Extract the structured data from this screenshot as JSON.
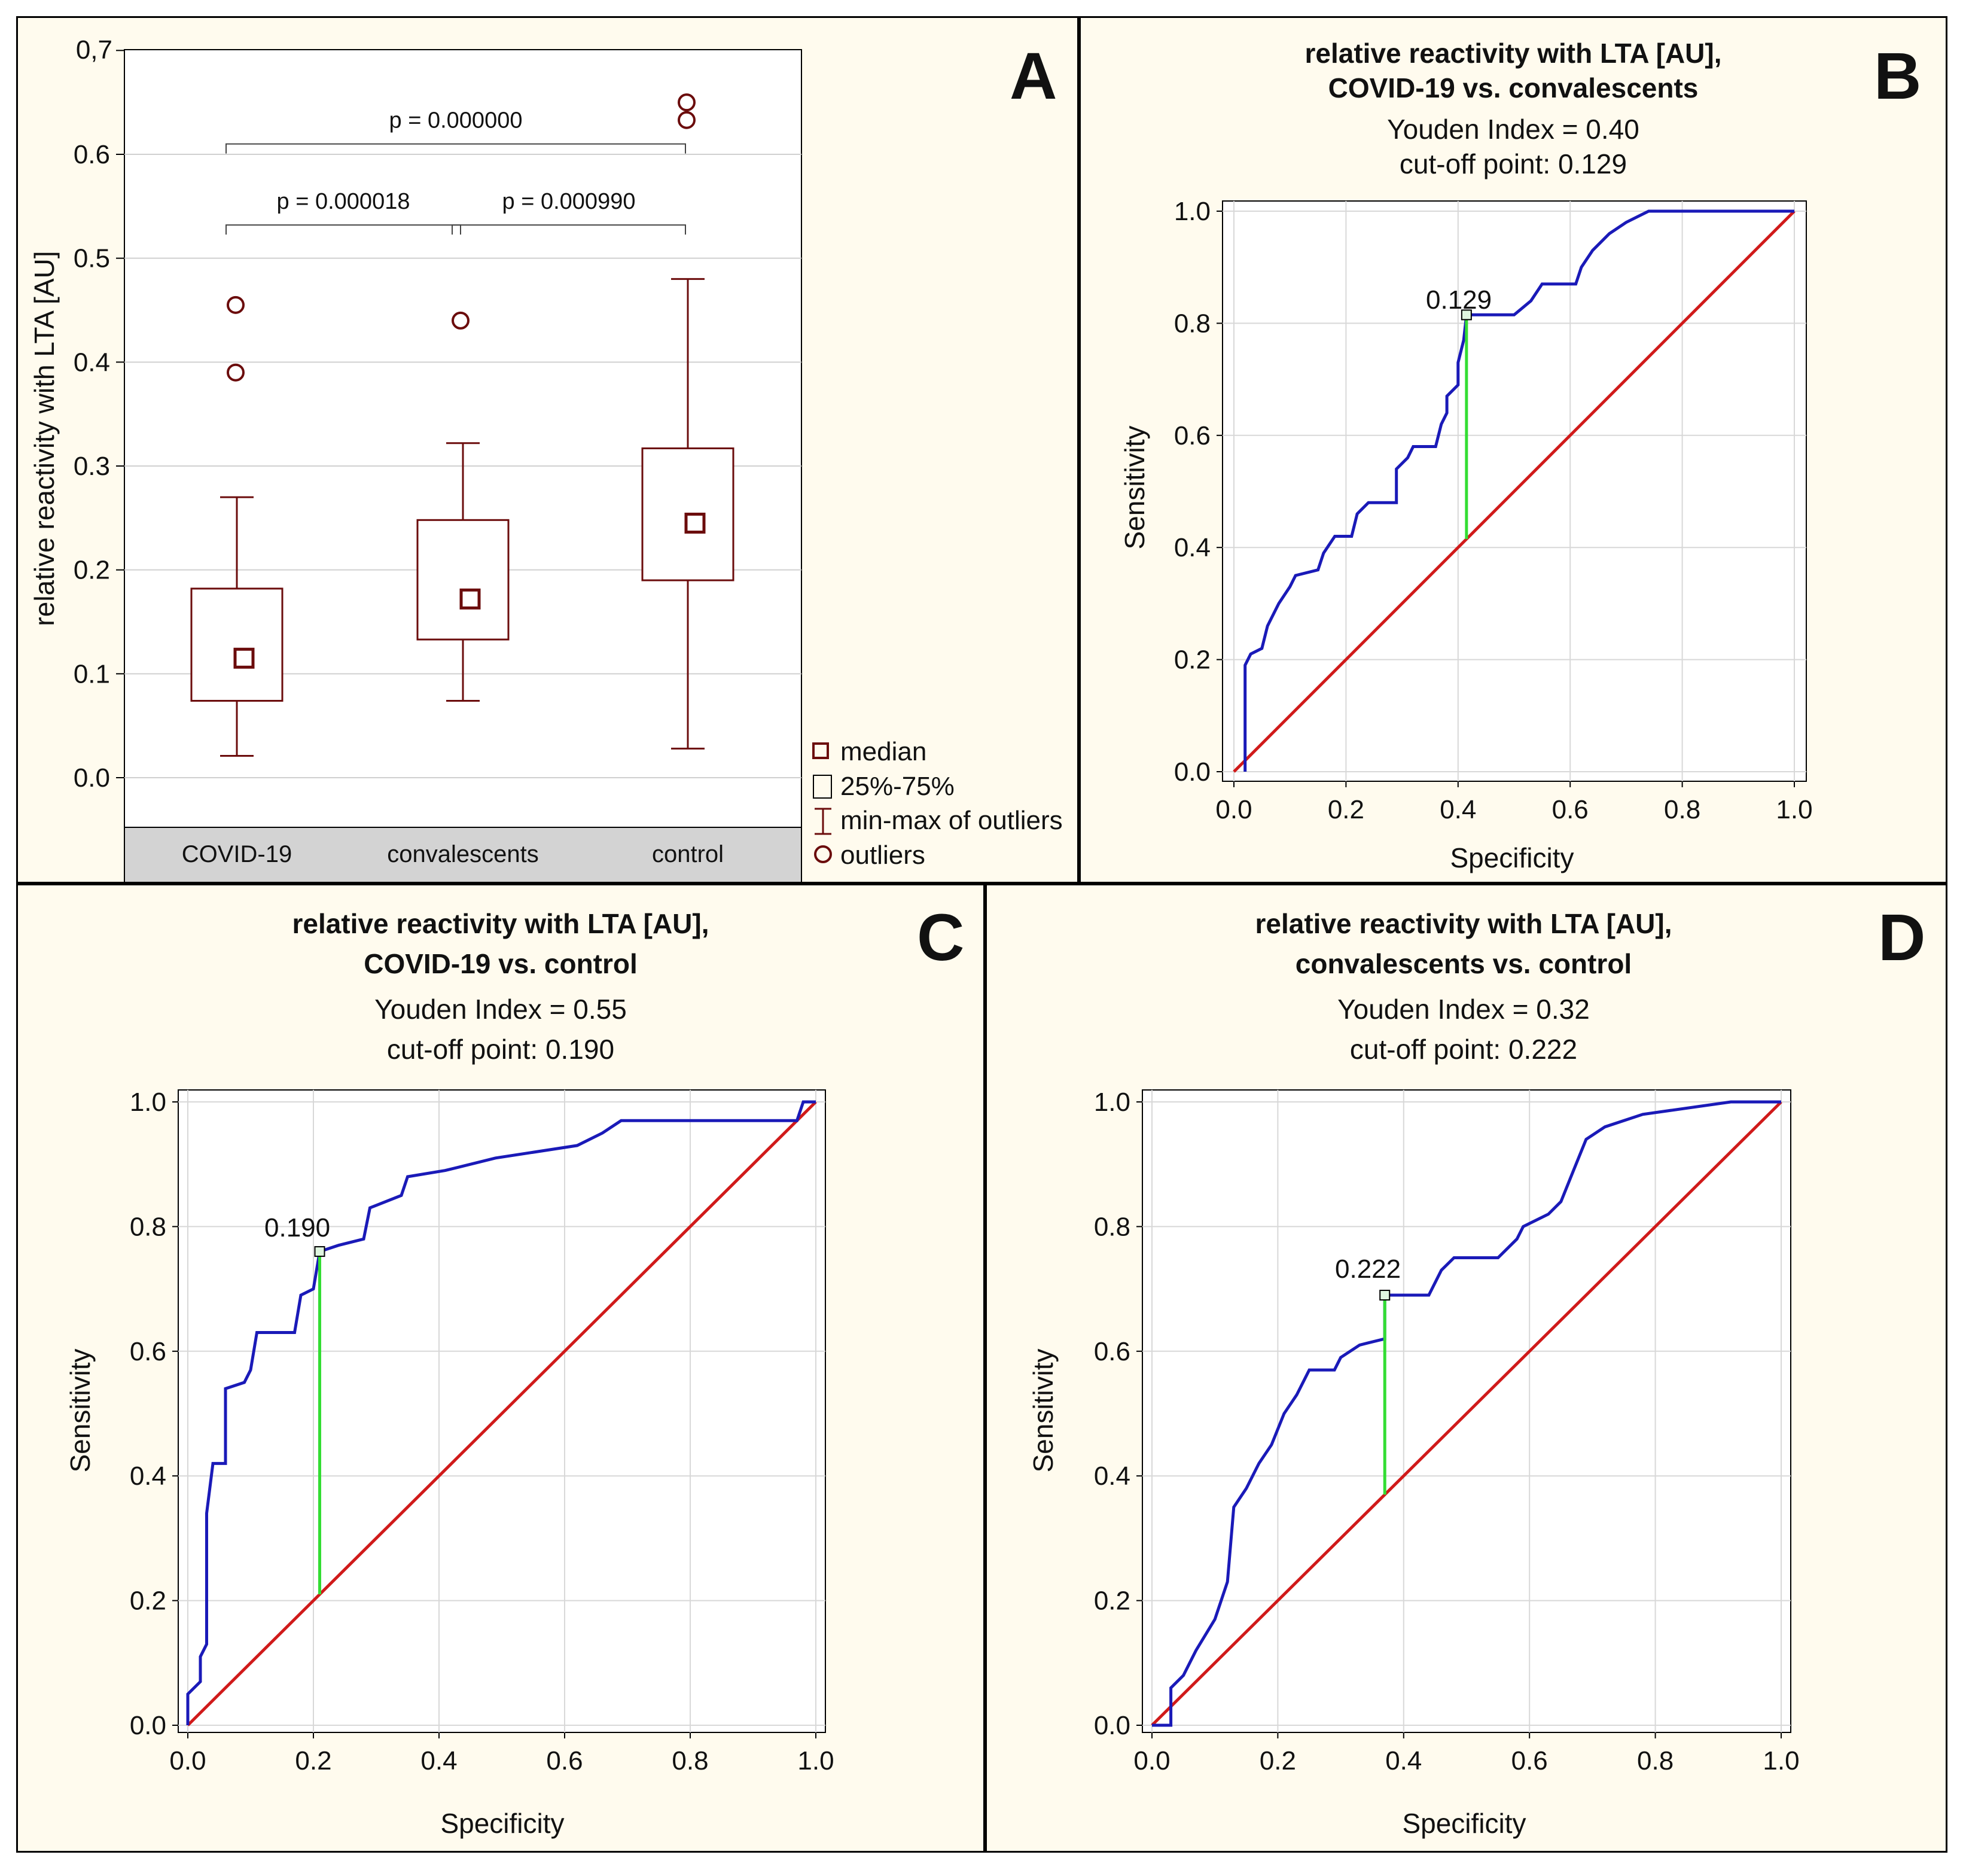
{
  "chart_data": [
    {
      "panel": "A",
      "type": "box",
      "ylabel": "relative reactivity with LTA [AU]",
      "ylim": [
        -0.05,
        0.7
      ],
      "yticks": [
        0.0,
        0.1,
        0.2,
        0.3,
        0.4,
        0.5,
        0.6
      ],
      "ytick_labels": [
        "0.0",
        "0.1",
        "0.2",
        "0.3",
        "0.4",
        "0.5",
        "0.6"
      ],
      "ytop_label": "0,7",
      "categories": [
        "COVID-19",
        "convalescents",
        "control"
      ],
      "boxes": [
        {
          "median": 0.115,
          "q1": 0.074,
          "q3": 0.182,
          "min": 0.021,
          "max": 0.27,
          "outliers": [
            0.455,
            0.39
          ]
        },
        {
          "median": 0.172,
          "q1": 0.133,
          "q3": 0.248,
          "min": 0.074,
          "max": 0.322,
          "outliers": [
            0.44
          ]
        },
        {
          "median": 0.245,
          "q1": 0.19,
          "q3": 0.317,
          "min": 0.028,
          "max": 0.48,
          "outliers": [
            0.65,
            0.633
          ]
        }
      ],
      "comparisons": [
        {
          "from": 0,
          "to": 2,
          "label": "p = 0.000000",
          "y": 0.61
        },
        {
          "from": 0,
          "to": 1,
          "label": "p = 0.000018",
          "y": 0.532
        },
        {
          "from": 1,
          "to": 2,
          "label": "p = 0.000990",
          "y": 0.532
        }
      ],
      "legend": [
        "median",
        "25%-75%",
        "min-max of outliers",
        "outliers"
      ]
    },
    {
      "panel": "B",
      "type": "line",
      "title": [
        "relative reactivity with LTA [AU],",
        "COVID-19 vs. convalescents"
      ],
      "youden": "Youden Index  = 0.40",
      "cutoff": "cut-off point: 0.129",
      "cut_label": "0.129",
      "cut_point": [
        0.415,
        0.815
      ],
      "xlabel": "Specificity",
      "ylabel": "Sensitivity",
      "ticks": [
        "0.0",
        "0.2",
        "0.4",
        "0.6",
        "0.8",
        "1.0"
      ],
      "roc": [
        [
          0.02,
          0.0
        ],
        [
          0.02,
          0.02
        ],
        [
          0.02,
          0.19
        ],
        [
          0.03,
          0.21
        ],
        [
          0.05,
          0.22
        ],
        [
          0.06,
          0.26
        ],
        [
          0.07,
          0.28
        ],
        [
          0.08,
          0.3
        ],
        [
          0.1,
          0.33
        ],
        [
          0.11,
          0.35
        ],
        [
          0.15,
          0.36
        ],
        [
          0.16,
          0.39
        ],
        [
          0.18,
          0.42
        ],
        [
          0.21,
          0.42
        ],
        [
          0.22,
          0.46
        ],
        [
          0.24,
          0.48
        ],
        [
          0.29,
          0.48
        ],
        [
          0.29,
          0.54
        ],
        [
          0.31,
          0.56
        ],
        [
          0.32,
          0.58
        ],
        [
          0.36,
          0.58
        ],
        [
          0.37,
          0.62
        ],
        [
          0.38,
          0.64
        ],
        [
          0.38,
          0.67
        ],
        [
          0.4,
          0.69
        ],
        [
          0.4,
          0.73
        ],
        [
          0.41,
          0.77
        ],
        [
          0.415,
          0.815
        ],
        [
          0.5,
          0.815
        ],
        [
          0.53,
          0.84
        ],
        [
          0.55,
          0.87
        ],
        [
          0.61,
          0.87
        ],
        [
          0.62,
          0.9
        ],
        [
          0.64,
          0.93
        ],
        [
          0.67,
          0.96
        ],
        [
          0.7,
          0.98
        ],
        [
          0.74,
          1.0
        ],
        [
          1.0,
          1.0
        ]
      ]
    },
    {
      "panel": "C",
      "type": "line",
      "title": [
        "relative reactivity with LTA [AU],",
        "COVID-19 vs. control"
      ],
      "youden": "Youden Index  = 0.55",
      "cutoff": "cut-off point: 0.190",
      "cut_label": "0.190",
      "cut_point": [
        0.21,
        0.76
      ],
      "xlabel": "Specificity",
      "ylabel": "Sensitivity",
      "ticks": [
        "0.0",
        "0.2",
        "0.4",
        "0.6",
        "0.8",
        "1.0"
      ],
      "roc": [
        [
          0.0,
          0.0
        ],
        [
          0.0,
          0.05
        ],
        [
          0.02,
          0.07
        ],
        [
          0.02,
          0.11
        ],
        [
          0.03,
          0.13
        ],
        [
          0.03,
          0.34
        ],
        [
          0.04,
          0.42
        ],
        [
          0.06,
          0.42
        ],
        [
          0.06,
          0.54
        ],
        [
          0.09,
          0.55
        ],
        [
          0.1,
          0.57
        ],
        [
          0.11,
          0.63
        ],
        [
          0.17,
          0.63
        ],
        [
          0.18,
          0.69
        ],
        [
          0.2,
          0.7
        ],
        [
          0.21,
          0.76
        ],
        [
          0.24,
          0.77
        ],
        [
          0.28,
          0.78
        ],
        [
          0.29,
          0.83
        ],
        [
          0.34,
          0.85
        ],
        [
          0.35,
          0.88
        ],
        [
          0.41,
          0.89
        ],
        [
          0.49,
          0.91
        ],
        [
          0.62,
          0.93
        ],
        [
          0.66,
          0.95
        ],
        [
          0.69,
          0.97
        ],
        [
          0.97,
          0.97
        ],
        [
          0.98,
          1.0
        ],
        [
          1.0,
          1.0
        ]
      ]
    },
    {
      "panel": "D",
      "type": "line",
      "title": [
        "relative reactivity with LTA [AU],",
        "convalescents vs. control"
      ],
      "youden": "Youden Index  = 0.32",
      "cutoff": "cut-off point: 0.222",
      "cut_label": "0.222",
      "cut_point": [
        0.37,
        0.69
      ],
      "xlabel": "Specificity",
      "ylabel": "Sensitivity",
      "ticks": [
        "0.0",
        "0.2",
        "0.4",
        "0.6",
        "0.8",
        "1.0"
      ],
      "roc": [
        [
          0.0,
          0.0
        ],
        [
          0.03,
          0.0
        ],
        [
          0.03,
          0.06
        ],
        [
          0.05,
          0.08
        ],
        [
          0.07,
          0.12
        ],
        [
          0.1,
          0.17
        ],
        [
          0.12,
          0.23
        ],
        [
          0.13,
          0.35
        ],
        [
          0.15,
          0.38
        ],
        [
          0.17,
          0.42
        ],
        [
          0.19,
          0.45
        ],
        [
          0.21,
          0.5
        ],
        [
          0.23,
          0.53
        ],
        [
          0.25,
          0.57
        ],
        [
          0.29,
          0.57
        ],
        [
          0.3,
          0.59
        ],
        [
          0.33,
          0.61
        ],
        [
          0.37,
          0.62
        ],
        [
          0.37,
          0.69
        ],
        [
          0.44,
          0.69
        ],
        [
          0.46,
          0.73
        ],
        [
          0.48,
          0.75
        ],
        [
          0.55,
          0.75
        ],
        [
          0.58,
          0.78
        ],
        [
          0.59,
          0.8
        ],
        [
          0.63,
          0.82
        ],
        [
          0.65,
          0.84
        ],
        [
          0.67,
          0.89
        ],
        [
          0.69,
          0.94
        ],
        [
          0.72,
          0.96
        ],
        [
          0.78,
          0.98
        ],
        [
          0.92,
          1.0
        ],
        [
          1.0,
          1.0
        ]
      ]
    }
  ],
  "panel_letters": [
    "A",
    "B",
    "C",
    "D"
  ],
  "colors": {
    "box": "#6b0c0c",
    "roc": "#1a1ab8",
    "diagonal": "#d01a1a",
    "cut": "#33dd33",
    "panel_bg": "#fffbee",
    "category_bar": "#d3d3d3"
  }
}
